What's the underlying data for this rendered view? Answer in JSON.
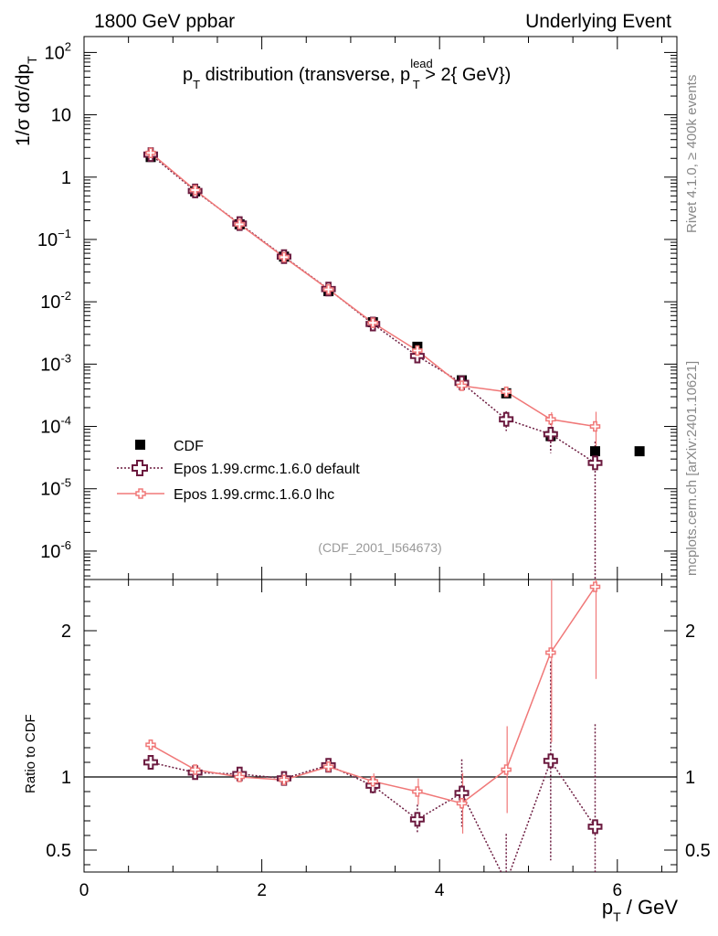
{
  "header": {
    "left": "1800 GeV ppbar",
    "right": "Underlying Event",
    "side_top": "Rivet 4.1.0, ≥ 400k events",
    "side_bottom": "mcplots.cern.ch [arXiv:2401.10621]"
  },
  "chart_data": {
    "type": "scatter",
    "title_main": "p",
    "title_sub": "T",
    "title_mid": " distribution (transverse, p",
    "title_sup": "lead",
    "title_sub2": "T",
    "title_end": " > 2{ GeV})",
    "analysis_tag": "(CDF_2001_I564673)",
    "ylabel_main": "1/σ  dσ/dp",
    "ylabel_sub": "T",
    "ratio_ylabel": "Ratio to CDF",
    "xlabel_main": "p",
    "xlabel_sub": "T",
    "xlabel_end": " / GeV",
    "xlim": [
      0,
      6.67
    ],
    "ylim": [
      3.5e-07,
      180
    ],
    "ratio_ylim": [
      0.35,
      2.35
    ],
    "x_ticks": [
      {
        "v": 0,
        "label": "0"
      },
      {
        "v": 2,
        "label": "2"
      },
      {
        "v": 4,
        "label": "4"
      },
      {
        "v": 6,
        "label": "6"
      }
    ],
    "y_ticks": [
      {
        "v": 100,
        "base": "10",
        "exp": "2"
      },
      {
        "v": 10,
        "base": "10",
        "exp": ""
      },
      {
        "v": 1,
        "base": "1",
        "exp": ""
      },
      {
        "v": 0.1,
        "base": "10",
        "exp": "−1"
      },
      {
        "v": 0.01,
        "base": "10",
        "exp": "-2"
      },
      {
        "v": 0.001,
        "base": "10",
        "exp": "-3"
      },
      {
        "v": 0.0001,
        "base": "10",
        "exp": "-4"
      },
      {
        "v": 1e-05,
        "base": "10",
        "exp": "-5"
      },
      {
        "v": 1e-06,
        "base": "10",
        "exp": "-6"
      }
    ],
    "ratio_ticks": [
      {
        "v": 0.5,
        "label": "0.5"
      },
      {
        "v": 1,
        "label": "1"
      },
      {
        "v": 2,
        "label": "2"
      }
    ],
    "x": [
      0.75,
      1.25,
      1.75,
      2.25,
      2.75,
      3.25,
      3.75,
      4.25,
      4.75,
      5.25,
      5.75,
      6.25
    ],
    "series": [
      {
        "name": "CDF",
        "color": "#000000",
        "values": [
          2.1,
          0.59,
          0.175,
          0.053,
          0.0148,
          0.0047,
          0.0019,
          0.00055,
          0.00034,
          7e-05,
          4e-05,
          4e-05
        ]
      },
      {
        "name": "Epos 1.99.crmc.1.6.0 default",
        "color": "#6b1a3f",
        "values": [
          2.3,
          0.6,
          0.18,
          0.053,
          0.016,
          0.0044,
          0.00135,
          0.0005,
          0.00013,
          7.5e-05,
          2.6e-05
        ],
        "ratio": [
          1.1,
          1.03,
          1.02,
          0.99,
          1.08,
          0.94,
          0.71,
          0.89,
          0.28,
          1.11,
          0.66
        ]
      },
      {
        "name": "Epos 1.99.crmc.1.6.0 lhc",
        "color": "#f07878",
        "values": [
          2.45,
          0.62,
          0.175,
          0.052,
          0.0158,
          0.0046,
          0.00165,
          0.00045,
          0.00036,
          0.00013,
          0.0001
        ],
        "ratio": [
          1.22,
          1.05,
          1.0,
          0.98,
          1.07,
          0.97,
          0.9,
          0.82,
          1.05,
          1.85,
          2.3
        ]
      }
    ]
  }
}
